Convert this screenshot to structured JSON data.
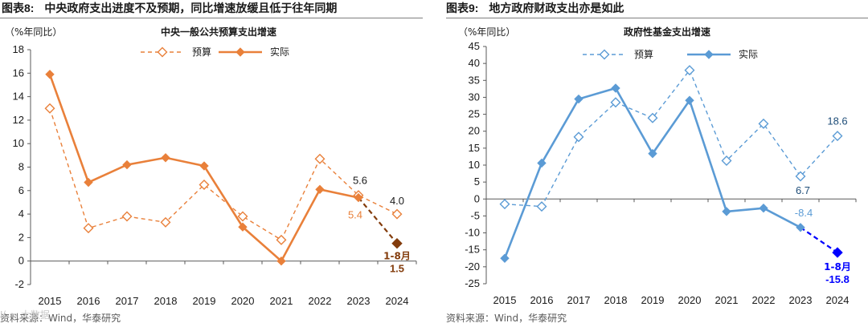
{
  "left": {
    "figure_number": "图表8:",
    "figure_title": "中央政府支出进度不及预期，同比增速放缓且低于往年同期",
    "source": "资料来源：Wind，华泰研究",
    "chart_data": {
      "type": "line",
      "title": "中央一般公共预算支出增速",
      "ylabel": "（%年同比）",
      "categories": [
        "2015",
        "2016",
        "2017",
        "2018",
        "2019",
        "2020",
        "2021",
        "2022",
        "2023",
        "2024"
      ],
      "ylim": [
        -2,
        18
      ],
      "yticks": [
        -2,
        0,
        2,
        4,
        6,
        8,
        10,
        12,
        14,
        16,
        18
      ],
      "series": [
        {
          "name": "预算",
          "style": "dashed",
          "marker": "hollow-diamond",
          "values": [
            13.0,
            2.8,
            3.8,
            3.3,
            6.5,
            3.8,
            1.8,
            8.7,
            5.6,
            4.0
          ]
        },
        {
          "name": "实际",
          "style": "solid",
          "marker": "filled-diamond",
          "values": [
            15.9,
            6.7,
            8.2,
            8.8,
            8.1,
            2.9,
            0.0,
            6.1,
            5.4,
            null
          ]
        }
      ],
      "extension": {
        "from_index": 8,
        "from_value": 5.4,
        "to_index": 9,
        "value": 1.5,
        "label_period": "1-8月",
        "label_value": "1.5"
      },
      "annotations": [
        {
          "text": "5.6",
          "series": "预算",
          "index": 8
        },
        {
          "text": "5.4",
          "series": "实际",
          "index": 8
        },
        {
          "text": "4.0",
          "series": "预算",
          "index": 9
        }
      ]
    }
  },
  "right": {
    "figure_number": "图表9:",
    "figure_title": "地方政府财政支出亦是如此",
    "source": "资料来源：Wind，华泰研究",
    "chart_data": {
      "type": "line",
      "title": "政府性基金支出增速",
      "ylabel": "（%年同比）",
      "categories": [
        "2015",
        "2016",
        "2017",
        "2018",
        "2019",
        "2020",
        "2021",
        "2022",
        "2023",
        "2024"
      ],
      "ylim": [
        -25,
        45
      ],
      "yticks": [
        -25,
        -20,
        -15,
        -10,
        -5,
        0,
        5,
        10,
        15,
        20,
        25,
        30,
        35,
        40,
        45
      ],
      "series": [
        {
          "name": "预算",
          "style": "dashed",
          "marker": "hollow-diamond",
          "values": [
            -1.5,
            -2.2,
            18.3,
            28.5,
            23.9,
            38.0,
            11.3,
            22.2,
            6.7,
            18.6
          ]
        },
        {
          "name": "实际",
          "style": "solid",
          "marker": "filled-diamond",
          "values": [
            -17.5,
            10.6,
            29.5,
            32.7,
            13.4,
            29.1,
            -3.7,
            -2.7,
            -8.4,
            null
          ]
        }
      ],
      "extension": {
        "from_index": 8,
        "from_value": -8.4,
        "to_index": 9,
        "value": -15.8,
        "label_period": "1-8月",
        "label_value": "-15.8"
      },
      "annotations": [
        {
          "text": "6.7",
          "series": "预算",
          "index": 8
        },
        {
          "text": "-8.4",
          "series": "实际",
          "index": 8
        },
        {
          "text": "18.6",
          "series": "预算",
          "index": 9
        }
      ]
    }
  },
  "colors": {
    "left_line": "#E9803A",
    "left_dashed": "#E9803A",
    "left_extension": "#833C0C",
    "right_line": "#5B9BD5",
    "right_dashed": "#5B9BD5",
    "right_extension": "#0000FF",
    "axis": "#595959"
  },
  "watermark": "I( ∞ 大数据"
}
